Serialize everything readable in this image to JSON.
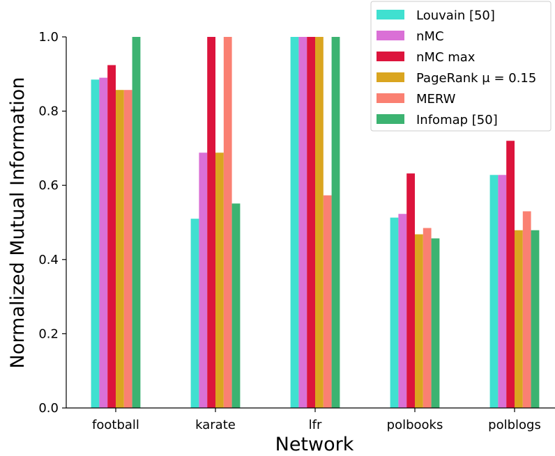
{
  "chart_data": {
    "type": "bar",
    "title": "",
    "xlabel": "Network",
    "ylabel": "Normalized Mutual Information",
    "categories": [
      "football",
      "karate",
      "lfr",
      "polbooks",
      "polblogs"
    ],
    "ylim": [
      0,
      1.0
    ],
    "yticks": [
      0.0,
      0.2,
      0.4,
      0.6,
      0.8,
      1.0
    ],
    "ytick_labels": [
      "0.0",
      "0.2",
      "0.4",
      "0.6",
      "0.8",
      "1.0"
    ],
    "grid": false,
    "legend_position": "top-right",
    "series": [
      {
        "name": "Louvain [50]",
        "color": "#40e0d0",
        "values": [
          0.885,
          0.51,
          1.0,
          0.513,
          0.628
        ]
      },
      {
        "name": "nMC",
        "color": "#da70d6",
        "values": [
          0.89,
          0.688,
          1.0,
          0.523,
          0.628
        ]
      },
      {
        "name": "nMC max",
        "color": "#dc143c",
        "values": [
          0.924,
          1.0,
          1.0,
          0.632,
          0.72
        ]
      },
      {
        "name": "PageRank μ = 0.15",
        "color": "#daa520",
        "values": [
          0.857,
          0.688,
          1.0,
          0.468,
          0.479
        ]
      },
      {
        "name": "MERW",
        "color": "#fa8072",
        "values": [
          0.857,
          1.0,
          0.573,
          0.485,
          0.53
        ]
      },
      {
        "name": "Infomap [50]",
        "color": "#3cb371",
        "values": [
          1.0,
          0.551,
          1.0,
          0.457,
          0.479
        ]
      }
    ]
  }
}
